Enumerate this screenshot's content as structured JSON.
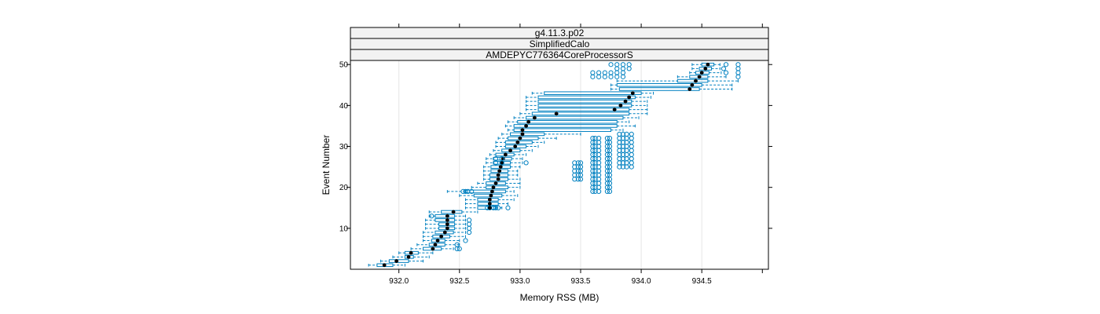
{
  "colors": {
    "box": "#0080c0",
    "median": "#000000",
    "strip": "#f2f2f2",
    "grid": "#e6e6e6"
  },
  "chart_data": {
    "type": "boxplot",
    "strips": [
      "g4.11.3.p02",
      "SimplifiedCalo",
      "AMDEPYC776364CoreProcessorS"
    ],
    "xlabel": "Memory RSS (MB)",
    "ylabel": "Event Number",
    "xlim": [
      931.6,
      935.05
    ],
    "ylim": [
      0,
      51
    ],
    "xticks": [
      932.0,
      932.5,
      933.0,
      933.5,
      934.0,
      934.5
    ],
    "xtick_labels": [
      "932.0",
      "932.5",
      "933.0",
      "933.5",
      "934.0",
      "934.5"
    ],
    "yticks": [
      10,
      20,
      30,
      40,
      50
    ],
    "ytick_labels": [
      "10",
      "20",
      "30",
      "40",
      "50"
    ],
    "orientation": "horizontal",
    "series": [
      {
        "event": 1,
        "whisker_low": 931.75,
        "q1": 931.82,
        "median": 931.88,
        "q3": 931.95,
        "whisker_high": 932.05,
        "outliers": []
      },
      {
        "event": 2,
        "whisker_low": 931.85,
        "q1": 931.92,
        "median": 931.98,
        "q3": 932.08,
        "whisker_high": 932.2,
        "outliers": []
      },
      {
        "event": 3,
        "whisker_low": 931.95,
        "q1": 932.05,
        "median": 932.08,
        "q3": 932.12,
        "whisker_high": 932.25,
        "outliers": []
      },
      {
        "event": 4,
        "whisker_low": 932.0,
        "q1": 932.05,
        "median": 932.1,
        "q3": 932.16,
        "whisker_high": 932.28,
        "outliers": []
      },
      {
        "event": 5,
        "whisker_low": 932.1,
        "q1": 932.2,
        "median": 932.28,
        "q3": 932.35,
        "whisker_high": 932.45,
        "outliers": [
          932.48,
          932.5
        ]
      },
      {
        "event": 6,
        "whisker_low": 932.15,
        "q1": 932.25,
        "median": 932.3,
        "q3": 932.38,
        "whisker_high": 932.5,
        "outliers": [
          932.48
        ]
      },
      {
        "event": 7,
        "whisker_low": 932.2,
        "q1": 932.27,
        "median": 932.32,
        "q3": 932.38,
        "whisker_high": 932.5,
        "outliers": [
          932.55
        ]
      },
      {
        "event": 8,
        "whisker_low": 932.2,
        "q1": 932.28,
        "median": 932.35,
        "q3": 932.42,
        "whisker_high": 932.55,
        "outliers": []
      },
      {
        "event": 9,
        "whisker_low": 932.2,
        "q1": 932.3,
        "median": 932.38,
        "q3": 932.45,
        "whisker_high": 932.55,
        "outliers": [
          932.58
        ]
      },
      {
        "event": 10,
        "whisker_low": 932.22,
        "q1": 932.33,
        "median": 932.4,
        "q3": 932.46,
        "whisker_high": 932.55,
        "outliers": [
          932.58
        ]
      },
      {
        "event": 11,
        "whisker_low": 932.22,
        "q1": 932.33,
        "median": 932.4,
        "q3": 932.46,
        "whisker_high": 932.55,
        "outliers": [
          932.58
        ]
      },
      {
        "event": 12,
        "whisker_low": 932.22,
        "q1": 932.3,
        "median": 932.4,
        "q3": 932.46,
        "whisker_high": 932.55,
        "outliers": [
          932.58
        ]
      },
      {
        "event": 13,
        "whisker_low": 932.25,
        "q1": 932.3,
        "median": 932.4,
        "q3": 932.46,
        "whisker_high": 932.55,
        "outliers": [
          932.27
        ]
      },
      {
        "event": 14,
        "whisker_low": 932.25,
        "q1": 932.35,
        "median": 932.45,
        "q3": 932.52,
        "whisker_high": 932.65,
        "outliers": []
      },
      {
        "event": 15,
        "whisker_low": 932.55,
        "q1": 932.65,
        "median": 932.75,
        "q3": 932.8,
        "whisker_high": 932.85,
        "outliers": [
          932.73,
          932.75,
          932.78,
          932.8,
          932.82,
          932.9
        ]
      },
      {
        "event": 16,
        "whisker_low": 932.55,
        "q1": 932.65,
        "median": 932.75,
        "q3": 932.82,
        "whisker_high": 932.9,
        "outliers": []
      },
      {
        "event": 17,
        "whisker_low": 932.55,
        "q1": 932.65,
        "median": 932.75,
        "q3": 932.82,
        "whisker_high": 932.95,
        "outliers": []
      },
      {
        "event": 18,
        "whisker_low": 932.5,
        "q1": 932.62,
        "median": 932.76,
        "q3": 932.85,
        "whisker_high": 932.98,
        "outliers": []
      },
      {
        "event": 19,
        "whisker_low": 932.4,
        "q1": 932.55,
        "median": 932.77,
        "q3": 932.88,
        "whisker_high": 932.95,
        "outliers": [
          932.53,
          932.55,
          932.57,
          932.6
        ]
      },
      {
        "event": 20,
        "whisker_low": 932.6,
        "q1": 932.72,
        "median": 932.78,
        "q3": 932.9,
        "whisker_high": 933.0,
        "outliers": []
      },
      {
        "event": 21,
        "whisker_low": 932.65,
        "q1": 932.72,
        "median": 932.8,
        "q3": 932.88,
        "whisker_high": 933.0,
        "outliers": []
      },
      {
        "event": 22,
        "whisker_low": 932.7,
        "q1": 932.75,
        "median": 932.82,
        "q3": 932.9,
        "whisker_high": 933.0,
        "outliers": []
      },
      {
        "event": 23,
        "whisker_low": 932.7,
        "q1": 932.75,
        "median": 932.82,
        "q3": 932.9,
        "whisker_high": 932.98,
        "outliers": []
      },
      {
        "event": 24,
        "whisker_low": 932.7,
        "q1": 932.76,
        "median": 932.83,
        "q3": 932.9,
        "whisker_high": 932.98,
        "outliers": []
      },
      {
        "event": 25,
        "whisker_low": 932.7,
        "q1": 932.76,
        "median": 932.84,
        "q3": 932.92,
        "whisker_high": 933.0,
        "outliers": []
      },
      {
        "event": 26,
        "whisker_low": 932.72,
        "q1": 932.78,
        "median": 932.85,
        "q3": 932.92,
        "whisker_high": 933.02,
        "outliers": []
      },
      {
        "event": 27,
        "whisker_low": 932.72,
        "q1": 932.78,
        "median": 932.86,
        "q3": 932.93,
        "whisker_high": 933.02,
        "outliers": []
      },
      {
        "event": 28,
        "whisker_low": 932.75,
        "q1": 932.8,
        "median": 932.88,
        "q3": 932.95,
        "whisker_high": 933.05,
        "outliers": []
      },
      {
        "event": 29,
        "whisker_low": 932.78,
        "q1": 932.85,
        "median": 932.92,
        "q3": 933.0,
        "whisker_high": 933.1,
        "outliers": []
      },
      {
        "event": 30,
        "whisker_low": 932.8,
        "q1": 932.88,
        "median": 932.96,
        "q3": 933.05,
        "whisker_high": 933.15,
        "outliers": []
      },
      {
        "event": 31,
        "whisker_low": 932.8,
        "q1": 932.88,
        "median": 932.98,
        "q3": 933.1,
        "whisker_high": 933.2,
        "outliers": []
      },
      {
        "event": 32,
        "whisker_low": 932.82,
        "q1": 932.9,
        "median": 933.0,
        "q3": 933.15,
        "whisker_high": 933.3,
        "outliers": []
      },
      {
        "event": 33,
        "whisker_low": 932.85,
        "q1": 932.92,
        "median": 933.02,
        "q3": 933.2,
        "whisker_high": 933.5,
        "outliers": []
      },
      {
        "event": 34,
        "whisker_low": 932.9,
        "q1": 932.95,
        "median": 933.02,
        "q3": 933.75,
        "whisker_high": 933.85,
        "outliers": []
      },
      {
        "event": 35,
        "whisker_low": 932.88,
        "q1": 932.95,
        "median": 933.05,
        "q3": 933.8,
        "whisker_high": 933.95,
        "outliers": []
      },
      {
        "event": 36,
        "whisker_low": 932.9,
        "q1": 932.98,
        "median": 933.07,
        "q3": 933.8,
        "whisker_high": 933.9,
        "outliers": []
      },
      {
        "event": 37,
        "whisker_low": 932.95,
        "q1": 933.05,
        "median": 933.12,
        "q3": 933.85,
        "whisker_high": 933.98,
        "outliers": []
      },
      {
        "event": 38,
        "whisker_low": 933.0,
        "q1": 933.1,
        "median": 933.3,
        "q3": 933.9,
        "whisker_high": 934.05,
        "outliers": []
      },
      {
        "event": 39,
        "whisker_low": 933.05,
        "q1": 933.15,
        "median": 933.78,
        "q3": 933.9,
        "whisker_high": 934.05,
        "outliers": []
      },
      {
        "event": 40,
        "whisker_low": 933.05,
        "q1": 933.15,
        "median": 933.83,
        "q3": 933.92,
        "whisker_high": 934.05,
        "outliers": []
      },
      {
        "event": 41,
        "whisker_low": 933.05,
        "q1": 933.15,
        "median": 933.87,
        "q3": 933.92,
        "whisker_high": 934.05,
        "outliers": []
      },
      {
        "event": 42,
        "whisker_low": 933.05,
        "q1": 933.15,
        "median": 933.9,
        "q3": 933.95,
        "whisker_high": 934.08,
        "outliers": []
      },
      {
        "event": 43,
        "whisker_low": 933.1,
        "q1": 933.2,
        "median": 933.93,
        "q3": 934.0,
        "whisker_high": 934.1,
        "outliers": []
      },
      {
        "event": 44,
        "whisker_low": 933.75,
        "q1": 933.82,
        "median": 934.4,
        "q3": 934.48,
        "whisker_high": 934.75,
        "outliers": []
      },
      {
        "event": 45,
        "whisker_low": 933.75,
        "q1": 933.8,
        "median": 934.42,
        "q3": 934.5,
        "whisker_high": 934.75,
        "outliers": []
      },
      {
        "event": 46,
        "whisker_low": 933.8,
        "q1": 934.3,
        "median": 934.45,
        "q3": 934.55,
        "whisker_high": 934.8,
        "outliers": []
      },
      {
        "event": 47,
        "whisker_low": 934.3,
        "q1": 934.4,
        "median": 934.48,
        "q3": 934.55,
        "whisker_high": 934.7,
        "outliers": [
          933.6,
          933.65,
          933.7,
          933.75,
          933.8,
          933.85,
          934.8
        ]
      },
      {
        "event": 48,
        "whisker_low": 934.4,
        "q1": 934.45,
        "median": 934.5,
        "q3": 934.56,
        "whisker_high": 934.66,
        "outliers": [
          933.6,
          933.65,
          933.7,
          933.75,
          933.8,
          933.85,
          934.7,
          934.8
        ]
      },
      {
        "event": 49,
        "whisker_low": 934.42,
        "q1": 934.48,
        "median": 934.53,
        "q3": 934.58,
        "whisker_high": 934.65,
        "outliers": [
          933.8,
          933.85,
          933.9,
          934.68,
          934.8
        ]
      },
      {
        "event": 50,
        "whisker_low": 934.42,
        "q1": 934.5,
        "median": 934.55,
        "q3": 934.6,
        "whisker_high": 934.65,
        "outliers": [
          933.75,
          933.8,
          933.85,
          933.9,
          934.7,
          934.8
        ]
      }
    ],
    "outlier_clusters": [
      {
        "x": [
          933.45,
          933.48,
          933.5
        ],
        "events": [
          22,
          23,
          24,
          25,
          26
        ]
      },
      {
        "x": [
          933.6,
          933.62,
          933.65
        ],
        "events": [
          19,
          20,
          21,
          22,
          23,
          24,
          25,
          26,
          27,
          28,
          29,
          30,
          31,
          32
        ]
      },
      {
        "x": [
          933.72,
          933.74
        ],
        "events": [
          19,
          20,
          21,
          22,
          23,
          24,
          25,
          26,
          27,
          28,
          29,
          30,
          31,
          32
        ]
      },
      {
        "x": [
          933.82,
          933.85,
          933.88,
          933.92
        ],
        "events": [
          25,
          26,
          27,
          28,
          29,
          30,
          31,
          32,
          33
        ]
      },
      {
        "x": [
          933.05
        ],
        "events": [
          26
        ]
      },
      {
        "x": [
          932.8,
          932.85
        ],
        "events": [
          26,
          27
        ]
      }
    ]
  }
}
